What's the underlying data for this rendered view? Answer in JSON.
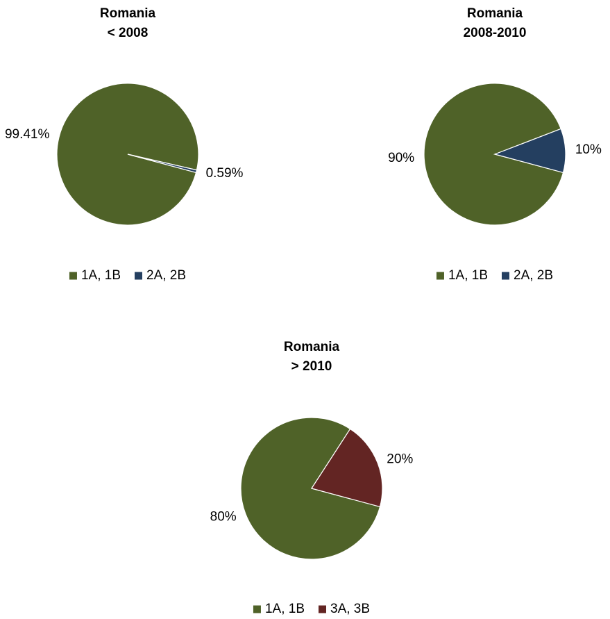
{
  "chart_data": [
    {
      "type": "pie",
      "title": [
        "Romania",
        "< 2008"
      ],
      "categories": [
        "1A, 1B",
        "2A, 2B"
      ],
      "values": [
        99.41,
        0.59
      ],
      "value_labels": [
        "99.41%",
        "0.59%"
      ],
      "colors": [
        "#4f6228",
        "#243f60"
      ],
      "legend": "bottom"
    },
    {
      "type": "pie",
      "title": [
        "Romania",
        "2008-2010"
      ],
      "categories": [
        "1A, 1B",
        "2A, 2B"
      ],
      "values": [
        90,
        10
      ],
      "value_labels": [
        "90%",
        "10%"
      ],
      "colors": [
        "#4f6228",
        "#243f60"
      ],
      "legend": "bottom"
    },
    {
      "type": "pie",
      "title": [
        "Romania",
        "> 2010"
      ],
      "categories": [
        "1A, 1B",
        "3A, 3B"
      ],
      "values": [
        80,
        20
      ],
      "value_labels": [
        "80%",
        "20%"
      ],
      "colors": [
        "#4f6228",
        "#632523"
      ],
      "legend": "bottom"
    }
  ]
}
